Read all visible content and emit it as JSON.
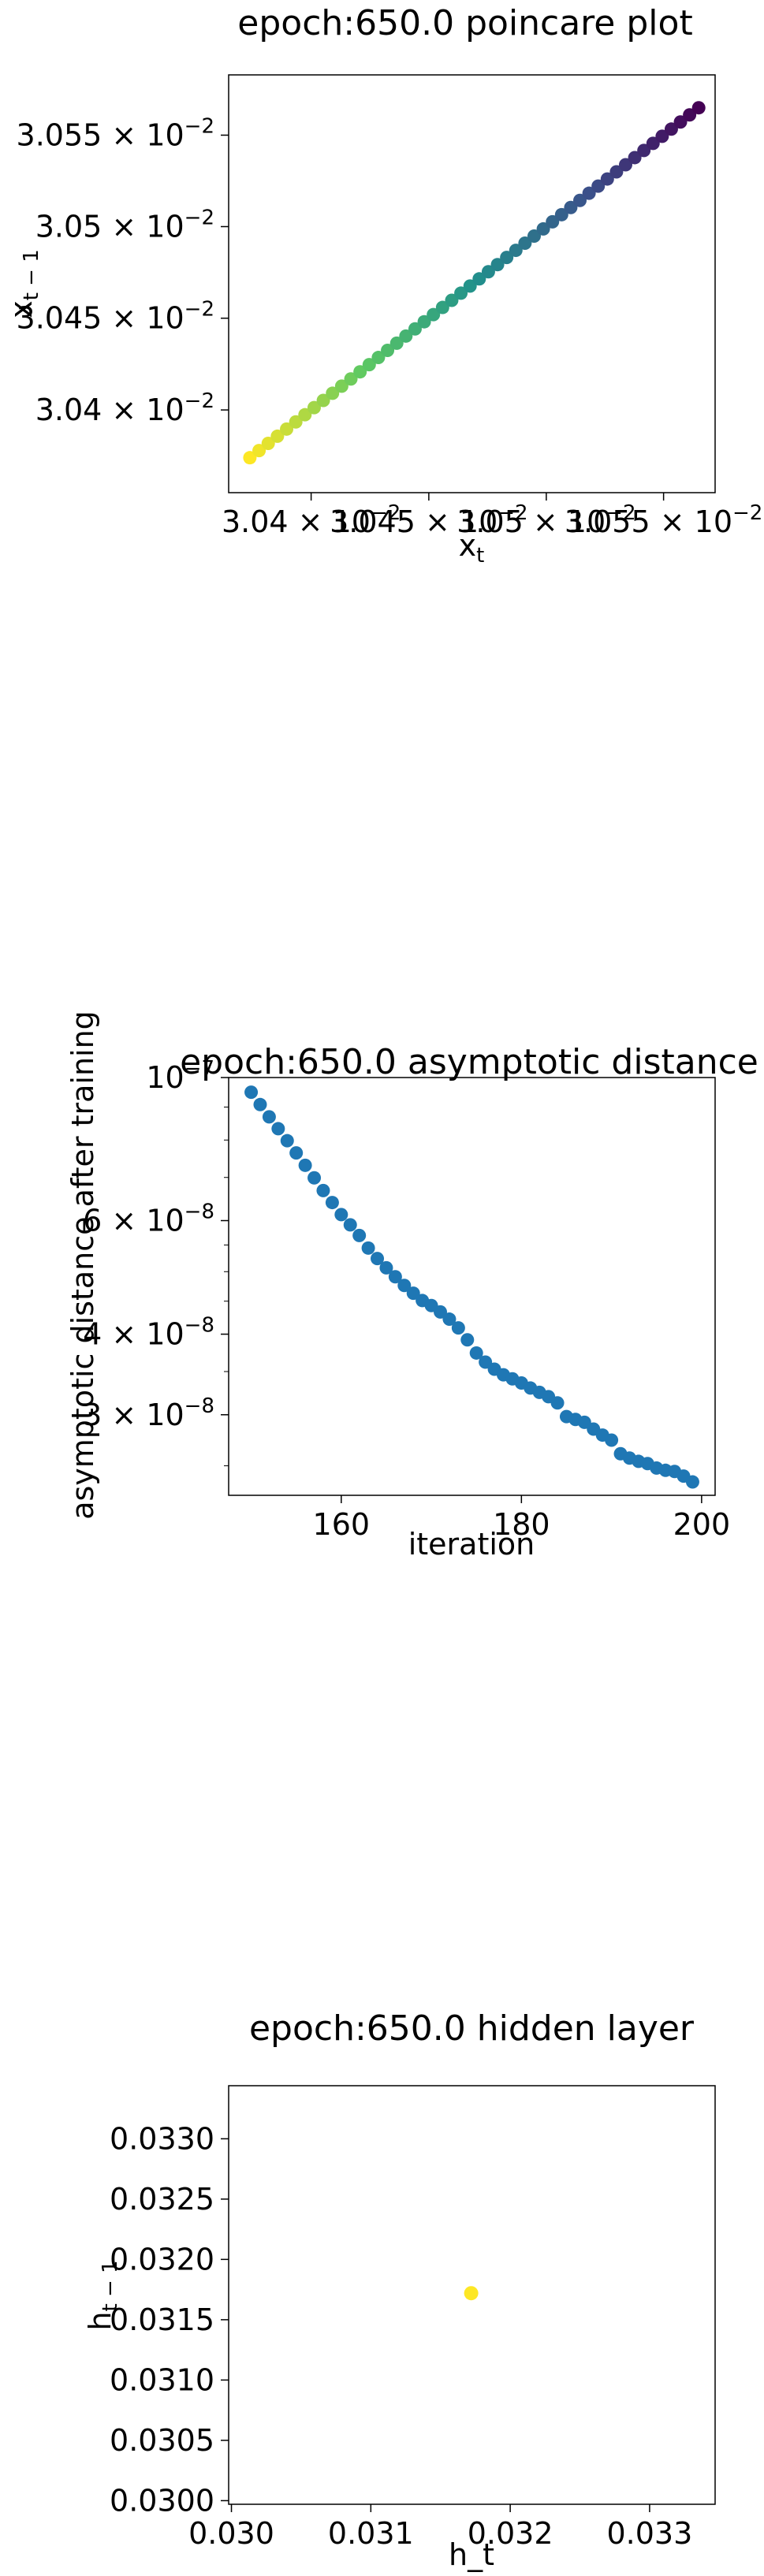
{
  "colors": {
    "axes": "#000000",
    "scatter_blue": "#1f77b4",
    "viridis_start": "#fde725",
    "viridis_end": "#440154"
  },
  "chart_data": [
    {
      "type": "scatter",
      "title": "epoch:650.0 poincare plot",
      "xlabel": "x_t",
      "ylabel": "x_{t-1}",
      "x_scale": "log",
      "y_scale": "log",
      "xlim": [
        0.030365,
        0.030572
      ],
      "ylim": [
        0.030355,
        0.030583
      ],
      "colormap": "viridis",
      "grid": false,
      "xticks": [
        {
          "value": 0.0304,
          "label": "3.04 × 10^-2"
        },
        {
          "value": 0.03045,
          "label": "3.045 × 10^-2"
        },
        {
          "value": 0.0305,
          "label": "3.05 × 10^-2"
        },
        {
          "value": 0.03055,
          "label": "3.055 × 10^-2"
        }
      ],
      "yticks": [
        {
          "value": 0.0304,
          "label": "3.04 × 10^-2"
        },
        {
          "value": 0.03045,
          "label": "3.045 × 10^-2"
        },
        {
          "value": 0.0305,
          "label": "3.05 × 10^-2"
        },
        {
          "value": 0.03055,
          "label": "3.055 × 10^-2"
        }
      ],
      "x_start": 0.030374,
      "x_end": 0.030565,
      "n_points": 50
    },
    {
      "type": "scatter",
      "title": "epoch:650.0 asymptotic distance",
      "xlabel": "iteration",
      "ylabel": "asymptotic distance after training",
      "y_scale": "log",
      "xlim": [
        147.5,
        201.5
      ],
      "ylim": [
        2.25e-08,
        1e-07
      ],
      "grid": false,
      "color": "#1f77b4",
      "xticks": [
        {
          "value": 160,
          "label": "160"
        },
        {
          "value": 180,
          "label": "180"
        },
        {
          "value": 200,
          "label": "200"
        }
      ],
      "yticks": [
        {
          "value": 1e-07,
          "label": "10^-7"
        },
        {
          "value": 6e-08,
          "label": "6 × 10^-8"
        },
        {
          "value": 4e-08,
          "label": "4 × 10^-8"
        },
        {
          "value": 3e-08,
          "label": "3 × 10^-8"
        }
      ],
      "x": [
        150,
        151,
        152,
        153,
        154,
        155,
        156,
        157,
        158,
        159,
        160,
        161,
        162,
        163,
        164,
        165,
        166,
        167,
        168,
        169,
        170,
        171,
        172,
        173,
        174,
        175,
        176,
        177,
        178,
        179,
        180,
        181,
        182,
        183,
        184,
        185,
        186,
        187,
        188,
        189,
        190,
        191,
        192,
        193,
        194,
        195,
        196,
        197,
        198,
        199
      ],
      "y": [
        9.49e-08,
        9.08e-08,
        8.69e-08,
        8.33e-08,
        7.98e-08,
        7.64e-08,
        7.31e-08,
        6.99e-08,
        6.68e-08,
        6.4e-08,
        6.13e-08,
        5.91e-08,
        5.69e-08,
        5.44e-08,
        5.24e-08,
        5.07e-08,
        4.91e-08,
        4.76e-08,
        4.63e-08,
        4.51e-08,
        4.43e-08,
        4.33e-08,
        4.22e-08,
        4.09e-08,
        3.92e-08,
        3.74e-08,
        3.62e-08,
        3.53e-08,
        3.46e-08,
        3.41e-08,
        3.36e-08,
        3.3e-08,
        3.25e-08,
        3.2e-08,
        3.13e-08,
        2.98e-08,
        2.95e-08,
        2.92e-08,
        2.85e-08,
        2.79e-08,
        2.74e-08,
        2.61e-08,
        2.57e-08,
        2.54e-08,
        2.52e-08,
        2.48e-08,
        2.46e-08,
        2.45e-08,
        2.41e-08,
        2.36e-08
      ]
    },
    {
      "type": "scatter",
      "title": "epoch:650.0 hidden layer",
      "xlabel": "h_t",
      "ylabel": "h_{t-1}",
      "xlim": [
        0.02998,
        0.03347
      ],
      "ylim": [
        0.02997,
        0.03344
      ],
      "grid": false,
      "color": "#fde725",
      "xticks": [
        {
          "value": 0.03,
          "label": "0.030"
        },
        {
          "value": 0.031,
          "label": "0.031"
        },
        {
          "value": 0.032,
          "label": "0.032"
        },
        {
          "value": 0.033,
          "label": "0.033"
        }
      ],
      "yticks": [
        {
          "value": 0.03,
          "label": "0.0300"
        },
        {
          "value": 0.0305,
          "label": "0.0305"
        },
        {
          "value": 0.031,
          "label": "0.0310"
        },
        {
          "value": 0.0315,
          "label": "0.0315"
        },
        {
          "value": 0.032,
          "label": "0.0320"
        },
        {
          "value": 0.0325,
          "label": "0.0325"
        },
        {
          "value": 0.033,
          "label": "0.0330"
        }
      ],
      "x": [
        0.03172
      ],
      "y": [
        0.03172
      ]
    }
  ]
}
